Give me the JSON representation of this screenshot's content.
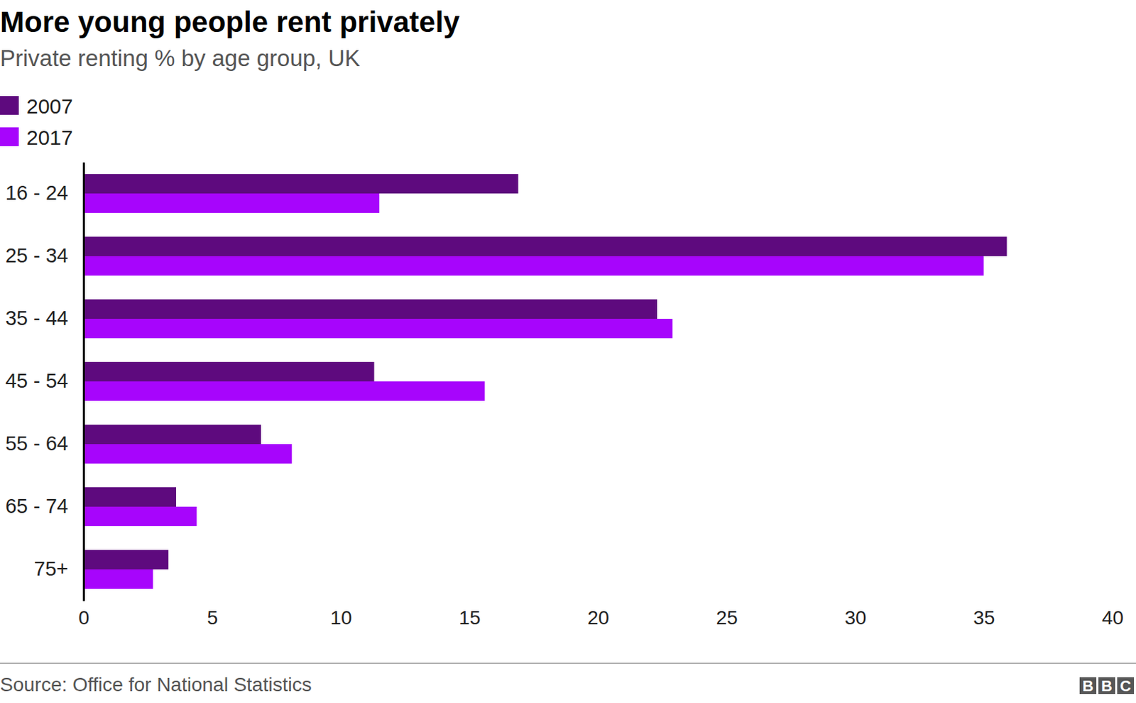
{
  "chart_data": {
    "type": "bar",
    "orientation": "horizontal",
    "title": "More young people rent privately",
    "subtitle": "Private renting % by age group, UK",
    "categories": [
      "16 - 24",
      "25 - 34",
      "35 - 44",
      "45 - 54",
      "55 - 64",
      "65 - 74",
      "75+"
    ],
    "series": [
      {
        "name": "2007",
        "color": "#5e0a7e",
        "values": [
          16.9,
          35.9,
          22.3,
          11.3,
          6.9,
          3.6,
          3.3
        ]
      },
      {
        "name": "2017",
        "color": "#a705fc",
        "values": [
          11.5,
          35.0,
          22.9,
          15.6,
          8.1,
          4.4,
          2.7
        ]
      }
    ],
    "xlim": [
      0,
      40
    ],
    "xticks": [
      0,
      5,
      10,
      15,
      20,
      25,
      30,
      35,
      40
    ],
    "grid": false,
    "legend": "top-left",
    "source": "Source: Office for National Statistics",
    "logo": "BBC"
  }
}
